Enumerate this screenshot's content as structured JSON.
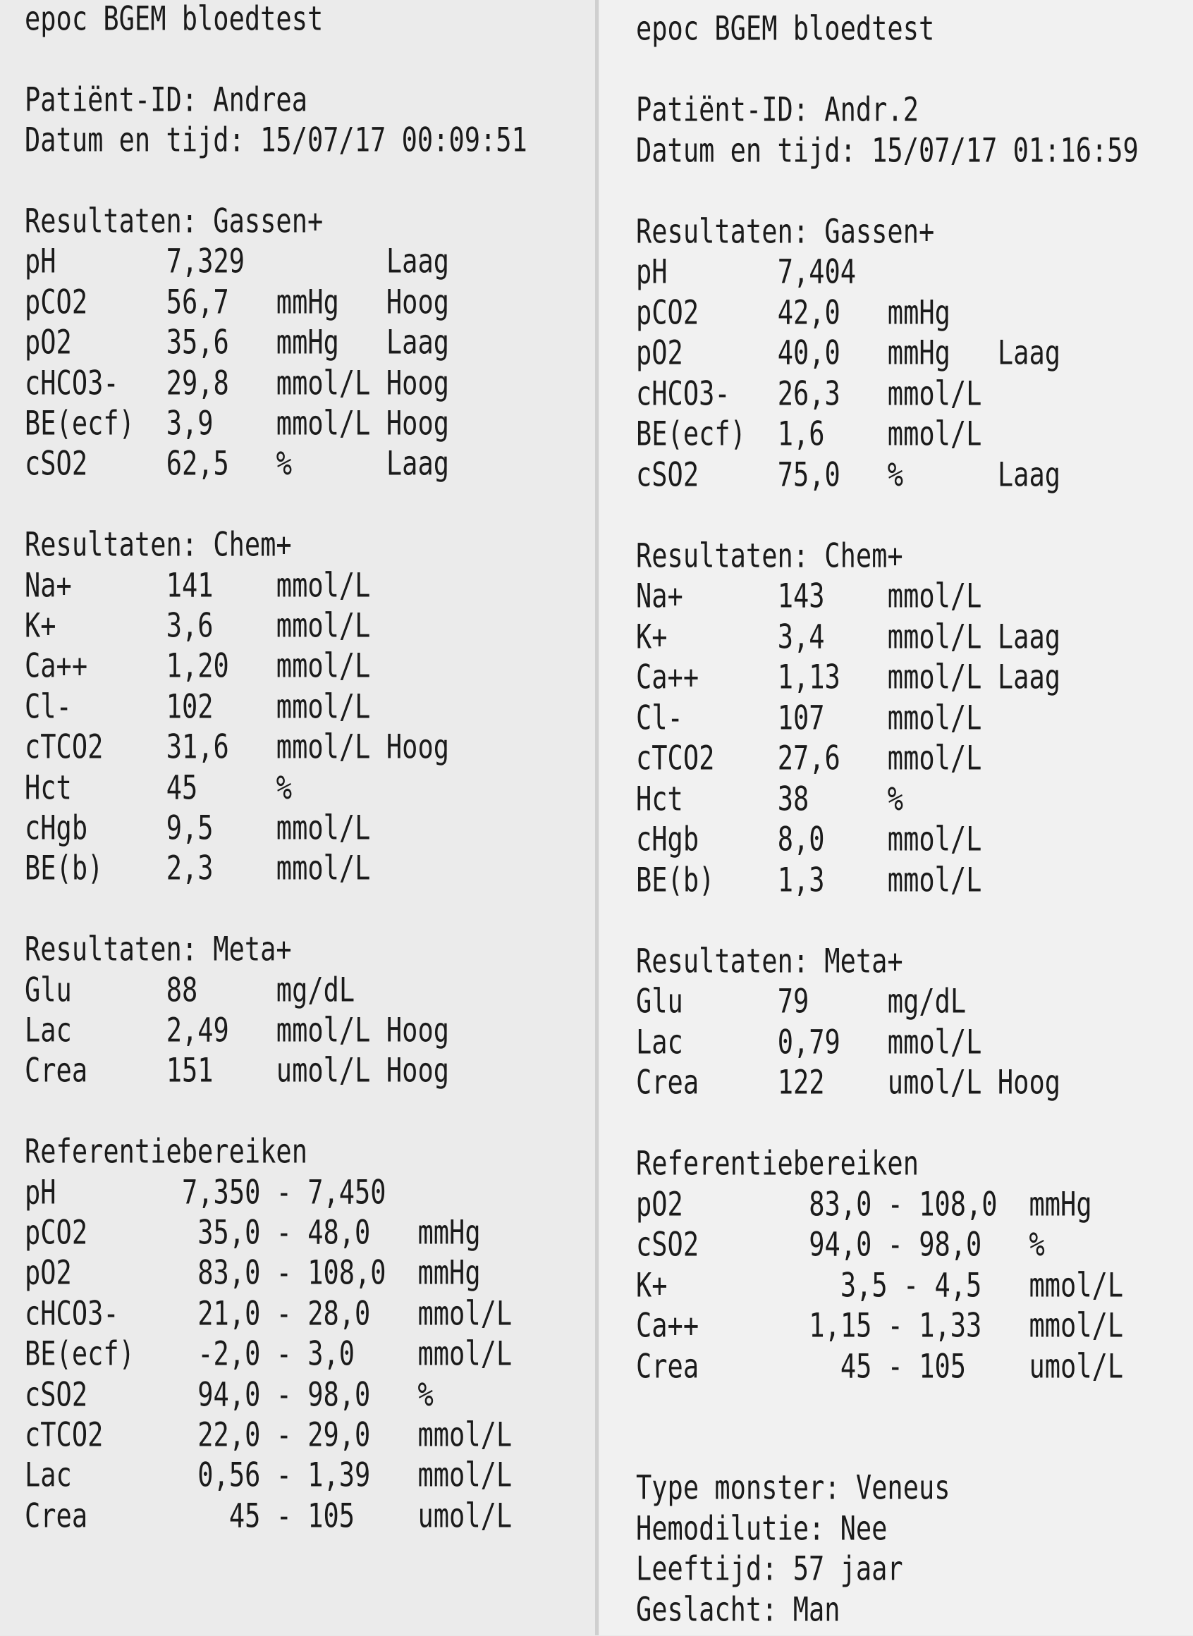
{
  "left": {
    "title": "epoc BGEM bloedtest",
    "patient_id": "Patiënt-ID: Andrea",
    "datetime": "Datum en tijd: 15/07/17 00:09:51",
    "sections": [
      {
        "heading": "Resultaten: Gassen+",
        "rows": [
          [
            "pH",
            "7,329",
            "",
            "Laag"
          ],
          [
            "pCO2",
            "56,7",
            "mmHg",
            "Hoog"
          ],
          [
            "pO2",
            "35,6",
            "mmHg",
            "Laag"
          ],
          [
            "cHCO3-",
            "29,8",
            "mmol/L",
            "Hoog"
          ],
          [
            "BE(ecf)",
            "3,9",
            "mmol/L",
            "Hoog"
          ],
          [
            "cSO2",
            "62,5",
            "%",
            "Laag"
          ]
        ]
      },
      {
        "heading": "Resultaten: Chem+",
        "rows": [
          [
            "Na+",
            "141",
            "mmol/L",
            ""
          ],
          [
            "K+",
            "3,6",
            "mmol/L",
            ""
          ],
          [
            "Ca++",
            "1,20",
            "mmol/L",
            ""
          ],
          [
            "Cl-",
            "102",
            "mmol/L",
            ""
          ],
          [
            "cTCO2",
            "31,6",
            "mmol/L",
            "Hoog"
          ],
          [
            "Hct",
            "45",
            "%",
            ""
          ],
          [
            "cHgb",
            "9,5",
            "mmol/L",
            ""
          ],
          [
            "BE(b)",
            "2,3",
            "mmol/L",
            ""
          ]
        ]
      },
      {
        "heading": "Resultaten: Meta+",
        "rows": [
          [
            "Glu",
            "88",
            "mg/dL",
            ""
          ],
          [
            "Lac",
            "2,49",
            "mmol/L",
            "Hoog"
          ],
          [
            "Crea",
            "151",
            "umol/L",
            "Hoog"
          ]
        ]
      }
    ],
    "reference": {
      "heading": "Referentiebereiken",
      "rows": [
        [
          "pH",
          "7,350 - 7,450",
          ""
        ],
        [
          "pCO2",
          " 35,0 - 48,0",
          "mmHg"
        ],
        [
          "pO2",
          " 83,0 - 108,0",
          "mmHg"
        ],
        [
          "cHCO3-",
          " 21,0 - 28,0",
          "mmol/L"
        ],
        [
          "BE(ecf)",
          " -2,0 - 3,0",
          "mmol/L"
        ],
        [
          "cSO2",
          " 94,0 - 98,0",
          "%"
        ],
        [
          "cTCO2",
          " 22,0 - 29,0",
          "mmol/L"
        ],
        [
          "Lac",
          " 0,56 - 1,39",
          "mmol/L"
        ],
        [
          "Crea",
          "   45 - 105",
          "umol/L"
        ]
      ]
    }
  },
  "right": {
    "title": "epoc BGEM bloedtest",
    "patient_id": "Patiënt-ID: Andr.2",
    "datetime": "Datum en tijd: 15/07/17 01:16:59",
    "sections": [
      {
        "heading": "Resultaten: Gassen+",
        "rows": [
          [
            "pH",
            "7,404",
            "",
            ""
          ],
          [
            "pCO2",
            "42,0",
            "mmHg",
            ""
          ],
          [
            "pO2",
            "40,0",
            "mmHg",
            "Laag"
          ],
          [
            "cHCO3-",
            "26,3",
            "mmol/L",
            ""
          ],
          [
            "BE(ecf)",
            "1,6",
            "mmol/L",
            ""
          ],
          [
            "cSO2",
            "75,0",
            "%",
            "Laag"
          ]
        ]
      },
      {
        "heading": "Resultaten: Chem+",
        "rows": [
          [
            "Na+",
            "143",
            "mmol/L",
            ""
          ],
          [
            "K+",
            "3,4",
            "mmol/L",
            "Laag"
          ],
          [
            "Ca++",
            "1,13",
            "mmol/L",
            "Laag"
          ],
          [
            "Cl-",
            "107",
            "mmol/L",
            ""
          ],
          [
            "cTCO2",
            "27,6",
            "mmol/L",
            ""
          ],
          [
            "Hct",
            "38",
            "%",
            ""
          ],
          [
            "cHgb",
            "8,0",
            "mmol/L",
            ""
          ],
          [
            "BE(b)",
            "1,3",
            "mmol/L",
            ""
          ]
        ]
      },
      {
        "heading": "Resultaten: Meta+",
        "rows": [
          [
            "Glu",
            "79",
            "mg/dL",
            ""
          ],
          [
            "Lac",
            "0,79",
            "mmol/L",
            ""
          ],
          [
            "Crea",
            "122",
            "umol/L",
            "Hoog"
          ]
        ]
      }
    ],
    "reference": {
      "heading": "Referentiebereiken",
      "rows": [
        [
          "pO2",
          " 83,0 - 108,0",
          "mmHg"
        ],
        [
          "cSO2",
          " 94,0 - 98,0",
          "%"
        ],
        [
          "K+",
          "   3,5 - 4,5",
          "mmol/L"
        ],
        [
          "Ca++",
          " 1,15 - 1,33",
          "mmol/L"
        ],
        [
          "Crea",
          "   45 - 105",
          "umol/L"
        ]
      ]
    },
    "footer": [
      "Type monster: Veneus",
      "Hemodilutie: Nee",
      "Leeftijd: 57 jaar",
      "Geslacht: Man"
    ]
  }
}
